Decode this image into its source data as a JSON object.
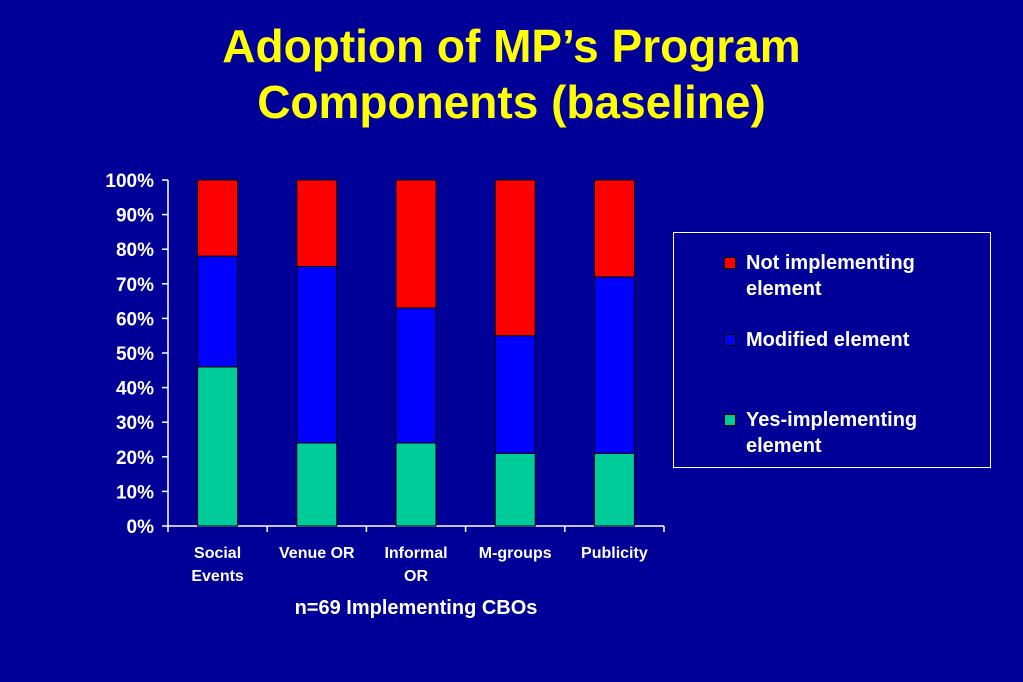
{
  "title_lines": [
    "Adoption of MP’s Program",
    "Components (baseline)"
  ],
  "chart_data": {
    "type": "bar",
    "stacked": true,
    "percent": true,
    "categories": [
      [
        "Social",
        "Events"
      ],
      [
        "Venue OR"
      ],
      [
        "Informal",
        "OR"
      ],
      [
        "M-groups"
      ],
      [
        "Publicity"
      ]
    ],
    "series": [
      {
        "name": "Yes-implementing element",
        "color": "#00cc99",
        "values": [
          46,
          24,
          24,
          21,
          21
        ]
      },
      {
        "name": "Modified element",
        "color": "#0000ff",
        "values": [
          32,
          51,
          39,
          34,
          51
        ]
      },
      {
        "name": "Not implementing element",
        "color": "#ff0000",
        "values": [
          22,
          25,
          37,
          45,
          28
        ]
      }
    ],
    "ylim": [
      0,
      100
    ],
    "yticks": [
      "0%",
      "10%",
      "20%",
      "30%",
      "40%",
      "50%",
      "60%",
      "70%",
      "80%",
      "90%",
      "100%"
    ],
    "xlabel": "n=69 Implementing CBOs",
    "legend_position": "right"
  },
  "legend": {
    "items": [
      {
        "label": "Not implementing element",
        "color": "#ff0000"
      },
      {
        "label": "Modified element",
        "color": "#0000ff"
      },
      {
        "label": "Yes-implementing element",
        "color": "#00cc99"
      }
    ]
  },
  "colors": {
    "background": "#000099",
    "title": "#ffff00",
    "text": "#ffffff"
  }
}
